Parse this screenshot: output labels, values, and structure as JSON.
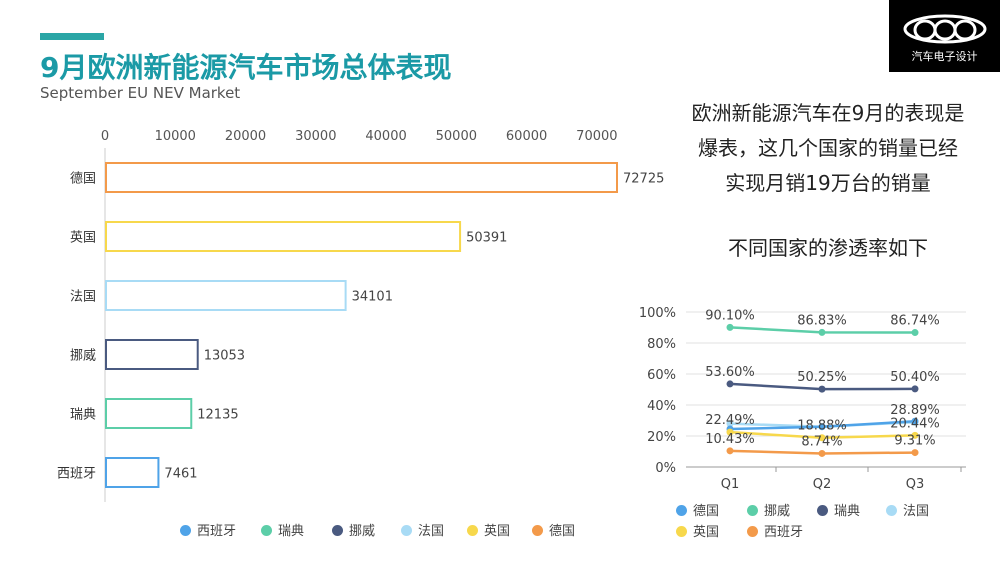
{
  "header": {
    "title": "9月欧洲新能源汽车市场总体表现",
    "subtitle": "September EU NEV Market",
    "logo_text": "汽车电子设计"
  },
  "notes": {
    "line1": "欧洲新能源汽车在9月的表现是",
    "line2": "爆表，这几个国家的销量已经",
    "line3": "实现月销19万台的销量",
    "penetration_title": "不同国家的渗透率如下"
  },
  "chart_data": [
    {
      "type": "bar",
      "orientation": "horizontal",
      "categories": [
        "德国",
        "英国",
        "法国",
        "挪威",
        "瑞典",
        "西班牙"
      ],
      "values": [
        72725,
        50391,
        34101,
        13053,
        12135,
        7461
      ],
      "xlim": [
        0,
        75000
      ],
      "xticks": [
        0,
        10000,
        20000,
        30000,
        40000,
        50000,
        60000,
        70000
      ],
      "colors": [
        "#f39a4a",
        "#f7d84c",
        "#a8dbf5",
        "#4a5a80",
        "#5ccea8",
        "#4fa3e8"
      ],
      "legend": {
        "placement": "bottom",
        "entries": [
          {
            "name": "西班牙",
            "color": "#4fa3e8"
          },
          {
            "name": "瑞典",
            "color": "#5ccea8"
          },
          {
            "name": "挪威",
            "color": "#4a5a80"
          },
          {
            "name": "法国",
            "color": "#a8dbf5"
          },
          {
            "name": "英国",
            "color": "#f7d84c"
          },
          {
            "name": "德国",
            "color": "#f39a4a"
          }
        ]
      }
    },
    {
      "type": "line",
      "categories": [
        "Q1",
        "Q2",
        "Q3"
      ],
      "ylim": [
        0,
        100
      ],
      "yticks": [
        "0%",
        "20%",
        "40%",
        "60%",
        "80%",
        "100%"
      ],
      "series": [
        {
          "name": "挪威",
          "color": "#5ccea8",
          "values": [
            90.1,
            86.83,
            86.74
          ],
          "labels": [
            "90.10%",
            "86.83%",
            "86.74%"
          ]
        },
        {
          "name": "瑞典",
          "color": "#4a5a80",
          "values": [
            53.6,
            50.25,
            50.4
          ],
          "labels": [
            "53.60%",
            "50.25%",
            "50.40%"
          ]
        },
        {
          "name": "法国",
          "color": "#a8dbf5",
          "values": [
            28.0,
            26.0,
            28.89
          ],
          "labels": [
            "",
            "",
            "28.89%"
          ]
        },
        {
          "name": "德国",
          "color": "#4fa3e8",
          "values": [
            24.5,
            26.0,
            29.5
          ],
          "labels": [
            "",
            "",
            ""
          ]
        },
        {
          "name": "英国",
          "color": "#f7d84c",
          "values": [
            22.49,
            18.88,
            20.44
          ],
          "labels": [
            "22.49%",
            "18.88%",
            "20.44%"
          ]
        },
        {
          "name": "西班牙",
          "color": "#f39a4a",
          "values": [
            10.43,
            8.74,
            9.31
          ],
          "labels": [
            "10.43%",
            "8.74%",
            "9.31%"
          ]
        }
      ],
      "legend": {
        "placement": "bottom",
        "entries": [
          {
            "name": "德国",
            "color": "#4fa3e8"
          },
          {
            "name": "挪威",
            "color": "#5ccea8"
          },
          {
            "name": "瑞典",
            "color": "#4a5a80"
          },
          {
            "name": "法国",
            "color": "#a8dbf5"
          },
          {
            "name": "英国",
            "color": "#f7d84c"
          },
          {
            "name": "西班牙",
            "color": "#f39a4a"
          }
        ]
      }
    }
  ]
}
